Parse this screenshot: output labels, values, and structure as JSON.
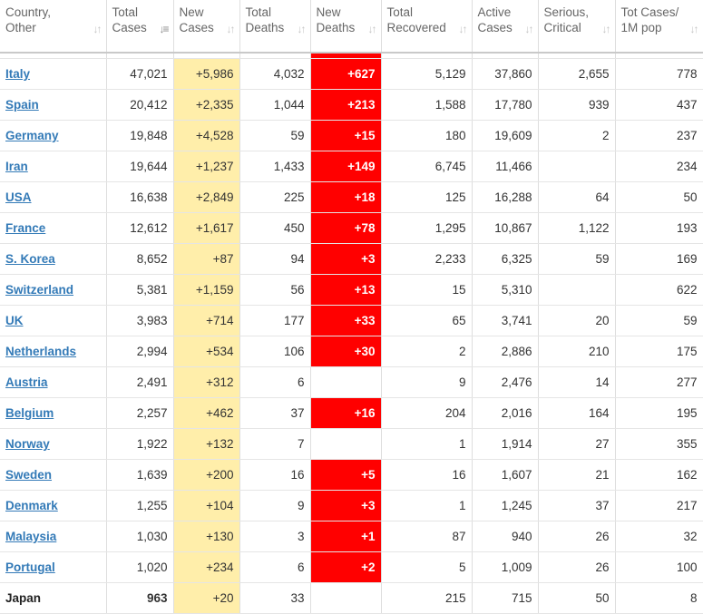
{
  "columns": [
    {
      "line1": "Country,",
      "line2": "Other",
      "sort_icon": "sort-icon"
    },
    {
      "line1": "Total",
      "line2": "Cases",
      "sort_icon": "sort-desc-icon"
    },
    {
      "line1": "New",
      "line2": "Cases",
      "sort_icon": "sort-icon"
    },
    {
      "line1": "Total",
      "line2": "Deaths",
      "sort_icon": "sort-icon"
    },
    {
      "line1": "New",
      "line2": "Deaths",
      "sort_icon": "sort-icon"
    },
    {
      "line1": "Total",
      "line2": "Recovered",
      "sort_icon": "sort-icon"
    },
    {
      "line1": "Active",
      "line2": "Cases",
      "sort_icon": "sort-icon"
    },
    {
      "line1": "Serious,",
      "line2": "Critical",
      "sort_icon": "sort-icon"
    },
    {
      "line1": "Tot Cases/",
      "line2": "1M pop",
      "sort_icon": "sort-icon"
    }
  ],
  "rows": [
    {
      "country": "Italy",
      "link": true,
      "total_cases": "47,021",
      "new_cases": "+5,986",
      "total_deaths": "4,032",
      "new_deaths": "+627",
      "total_recovered": "5,129",
      "active_cases": "37,860",
      "serious_critical": "2,655",
      "cases_per_1m": "778"
    },
    {
      "country": "Spain",
      "link": true,
      "total_cases": "20,412",
      "new_cases": "+2,335",
      "total_deaths": "1,044",
      "new_deaths": "+213",
      "total_recovered": "1,588",
      "active_cases": "17,780",
      "serious_critical": "939",
      "cases_per_1m": "437"
    },
    {
      "country": "Germany",
      "link": true,
      "total_cases": "19,848",
      "new_cases": "+4,528",
      "total_deaths": "59",
      "new_deaths": "+15",
      "total_recovered": "180",
      "active_cases": "19,609",
      "serious_critical": "2",
      "cases_per_1m": "237"
    },
    {
      "country": "Iran",
      "link": true,
      "total_cases": "19,644",
      "new_cases": "+1,237",
      "total_deaths": "1,433",
      "new_deaths": "+149",
      "total_recovered": "6,745",
      "active_cases": "11,466",
      "serious_critical": "",
      "cases_per_1m": "234"
    },
    {
      "country": "USA",
      "link": true,
      "total_cases": "16,638",
      "new_cases": "+2,849",
      "total_deaths": "225",
      "new_deaths": "+18",
      "total_recovered": "125",
      "active_cases": "16,288",
      "serious_critical": "64",
      "cases_per_1m": "50"
    },
    {
      "country": "France",
      "link": true,
      "total_cases": "12,612",
      "new_cases": "+1,617",
      "total_deaths": "450",
      "new_deaths": "+78",
      "total_recovered": "1,295",
      "active_cases": "10,867",
      "serious_critical": "1,122",
      "cases_per_1m": "193"
    },
    {
      "country": "S. Korea",
      "link": true,
      "total_cases": "8,652",
      "new_cases": "+87",
      "total_deaths": "94",
      "new_deaths": "+3",
      "total_recovered": "2,233",
      "active_cases": "6,325",
      "serious_critical": "59",
      "cases_per_1m": "169"
    },
    {
      "country": "Switzerland",
      "link": true,
      "total_cases": "5,381",
      "new_cases": "+1,159",
      "total_deaths": "56",
      "new_deaths": "+13",
      "total_recovered": "15",
      "active_cases": "5,310",
      "serious_critical": "",
      "cases_per_1m": "622"
    },
    {
      "country": "UK",
      "link": true,
      "total_cases": "3,983",
      "new_cases": "+714",
      "total_deaths": "177",
      "new_deaths": "+33",
      "total_recovered": "65",
      "active_cases": "3,741",
      "serious_critical": "20",
      "cases_per_1m": "59"
    },
    {
      "country": "Netherlands",
      "link": true,
      "total_cases": "2,994",
      "new_cases": "+534",
      "total_deaths": "106",
      "new_deaths": "+30",
      "total_recovered": "2",
      "active_cases": "2,886",
      "serious_critical": "210",
      "cases_per_1m": "175"
    },
    {
      "country": "Austria",
      "link": true,
      "total_cases": "2,491",
      "new_cases": "+312",
      "total_deaths": "6",
      "new_deaths": "",
      "total_recovered": "9",
      "active_cases": "2,476",
      "serious_critical": "14",
      "cases_per_1m": "277"
    },
    {
      "country": "Belgium",
      "link": true,
      "total_cases": "2,257",
      "new_cases": "+462",
      "total_deaths": "37",
      "new_deaths": "+16",
      "total_recovered": "204",
      "active_cases": "2,016",
      "serious_critical": "164",
      "cases_per_1m": "195"
    },
    {
      "country": "Norway",
      "link": true,
      "total_cases": "1,922",
      "new_cases": "+132",
      "total_deaths": "7",
      "new_deaths": "",
      "total_recovered": "1",
      "active_cases": "1,914",
      "serious_critical": "27",
      "cases_per_1m": "355"
    },
    {
      "country": "Sweden",
      "link": true,
      "total_cases": "1,639",
      "new_cases": "+200",
      "total_deaths": "16",
      "new_deaths": "+5",
      "total_recovered": "16",
      "active_cases": "1,607",
      "serious_critical": "21",
      "cases_per_1m": "162"
    },
    {
      "country": "Denmark",
      "link": true,
      "total_cases": "1,255",
      "new_cases": "+104",
      "total_deaths": "9",
      "new_deaths": "+3",
      "total_recovered": "1",
      "active_cases": "1,245",
      "serious_critical": "37",
      "cases_per_1m": "217"
    },
    {
      "country": "Malaysia",
      "link": true,
      "total_cases": "1,030",
      "new_cases": "+130",
      "total_deaths": "3",
      "new_deaths": "+1",
      "total_recovered": "87",
      "active_cases": "940",
      "serious_critical": "26",
      "cases_per_1m": "32"
    },
    {
      "country": "Portugal",
      "link": true,
      "total_cases": "1,020",
      "new_cases": "+234",
      "total_deaths": "6",
      "new_deaths": "+2",
      "total_recovered": "5",
      "active_cases": "1,009",
      "serious_critical": "26",
      "cases_per_1m": "100"
    },
    {
      "country": "Japan",
      "link": false,
      "total_cases": "963",
      "new_cases": "+20",
      "total_deaths": "33",
      "new_deaths": "",
      "total_recovered": "215",
      "active_cases": "715",
      "serious_critical": "50",
      "cases_per_1m": "8"
    }
  ],
  "colors": {
    "new_cases_bg": "#ffeeaa",
    "new_deaths_bg": "#ff0000",
    "link": "#337ab7"
  }
}
